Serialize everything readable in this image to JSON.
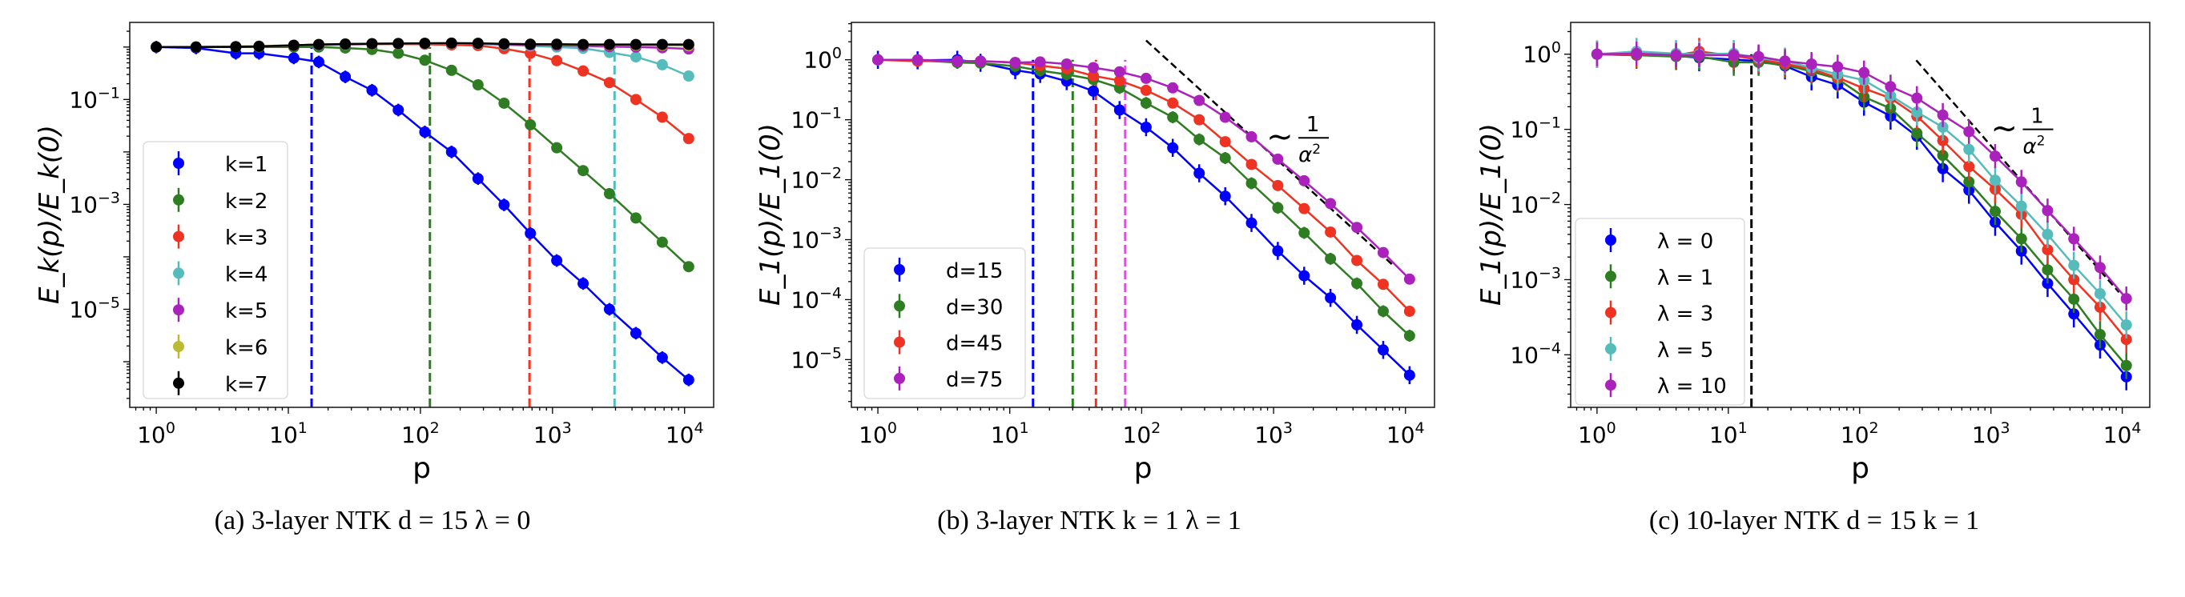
{
  "chart_data": [
    {
      "type": "line",
      "caption": "(a) 3-layer NTK d = 15 λ = 0",
      "xlabel": "p",
      "ylabel": "E_k(p)/E_k(0)",
      "xscale": "log",
      "yscale": "log",
      "xlim": [
        0.63,
        16600
      ],
      "ylim": [
        1.35e-07,
        2.95
      ],
      "xticks": [
        {
          "v": 1,
          "label": "10",
          "exp": "0"
        },
        {
          "v": 10,
          "label": "10",
          "exp": "1"
        },
        {
          "v": 100,
          "label": "10",
          "exp": "2"
        },
        {
          "v": 1000,
          "label": "10",
          "exp": "3"
        },
        {
          "v": 10000,
          "label": "10",
          "exp": "4"
        }
      ],
      "yticks": [
        {
          "v": 0.1,
          "label": "10",
          "exp": "−1"
        },
        {
          "v": 0.001,
          "label": "10",
          "exp": "−3"
        },
        {
          "v": 1e-05,
          "label": "10",
          "exp": "−5"
        }
      ],
      "grid": false,
      "legend": "center-left",
      "x": [
        1,
        2,
        4,
        6,
        11,
        17,
        27,
        43,
        68,
        108,
        172,
        273,
        430,
        680,
        1077,
        1706,
        2700,
        4280,
        6780,
        10740
      ],
      "series": [
        {
          "name": "k=1",
          "color": "#0000ff",
          "yerr_decades": 0.12,
          "values": [
            1.0,
            0.96,
            0.76,
            0.76,
            0.62,
            0.52,
            0.27,
            0.15,
            0.063,
            0.024,
            0.01,
            0.0031,
            0.00098,
            0.00028,
            8.5e-05,
            3.1e-05,
            1e-05,
            3.5e-06,
            1.2e-06,
            4.5e-07
          ]
        },
        {
          "name": "k=2",
          "color": "#2f7d22",
          "yerr_decades": 0.05,
          "values": [
            1.0,
            1.0,
            1.0,
            1.0,
            1.0,
            1.0,
            0.96,
            0.9,
            0.76,
            0.56,
            0.36,
            0.19,
            0.085,
            0.033,
            0.012,
            0.0044,
            0.0016,
            0.00055,
            0.00019,
            6.5e-05
          ]
        },
        {
          "name": "k=3",
          "color": "#ee3322",
          "yerr_decades": 0.04,
          "values": [
            1.0,
            1.0,
            1.02,
            1.03,
            1.07,
            1.1,
            1.12,
            1.13,
            1.14,
            1.13,
            1.1,
            1.07,
            0.93,
            0.76,
            0.55,
            0.35,
            0.21,
            0.1,
            0.046,
            0.018
          ]
        },
        {
          "name": "k=4",
          "color": "#55bbbb",
          "yerr_decades": 0.04,
          "values": [
            1.0,
            1.0,
            1.02,
            1.03,
            1.08,
            1.1,
            1.12,
            1.14,
            1.15,
            1.16,
            1.16,
            1.15,
            1.1,
            1.05,
            1.0,
            0.95,
            0.79,
            0.65,
            0.46,
            0.28
          ]
        },
        {
          "name": "k=5",
          "color": "#aa22bb",
          "yerr_decades": 0.04,
          "values": [
            1,
            1,
            1.02,
            1.04,
            1.08,
            1.11,
            1.13,
            1.15,
            1.16,
            1.17,
            1.17,
            1.16,
            1.13,
            1.1,
            1.08,
            1.05,
            1.02,
            1.0,
            0.97,
            0.92
          ]
        },
        {
          "name": "k=6",
          "color": "#bbbb33",
          "yerr_decades": 0.04,
          "values": [
            1,
            1,
            1.02,
            1.04,
            1.08,
            1.12,
            1.14,
            1.16,
            1.17,
            1.18,
            1.18,
            1.17,
            1.15,
            1.13,
            1.12,
            1.11,
            1.1,
            1.09,
            1.08,
            1.06
          ]
        },
        {
          "name": "k=7",
          "color": "#000000",
          "yerr_decades": 0.04,
          "values": [
            1.0,
            1.0,
            1.01,
            1.03,
            1.08,
            1.12,
            1.14,
            1.16,
            1.17,
            1.18,
            1.19,
            1.18,
            1.15,
            1.13,
            1.13,
            1.12,
            1.12,
            1.12,
            1.12,
            1.12
          ]
        }
      ],
      "vlines": [
        {
          "x": 15,
          "color": "#0000ff"
        },
        {
          "x": 118,
          "color": "#2f7d22"
        },
        {
          "x": 670,
          "color": "#ee3322"
        },
        {
          "x": 2950,
          "color": "#55bbbb"
        }
      ],
      "guide": null,
      "annotation": null
    },
    {
      "type": "line",
      "caption": "(b) 3-layer NTK k = 1 λ = 1",
      "xlabel": "p",
      "ylabel": "E_1(p)/E_1(0)",
      "xscale": "log",
      "yscale": "log",
      "xlim": [
        0.63,
        16600
      ],
      "ylim": [
        1.6e-06,
        4.2
      ],
      "xticks": [
        {
          "v": 1,
          "label": "10",
          "exp": "0"
        },
        {
          "v": 10,
          "label": "10",
          "exp": "1"
        },
        {
          "v": 100,
          "label": "10",
          "exp": "2"
        },
        {
          "v": 1000,
          "label": "10",
          "exp": "3"
        },
        {
          "v": 10000,
          "label": "10",
          "exp": "4"
        }
      ],
      "yticks": [
        {
          "v": 1,
          "label": "10",
          "exp": "0"
        },
        {
          "v": 0.1,
          "label": "10",
          "exp": "−1"
        },
        {
          "v": 0.01,
          "label": "10",
          "exp": "−2"
        },
        {
          "v": 0.001,
          "label": "10",
          "exp": "−3"
        },
        {
          "v": 0.0001,
          "label": "10",
          "exp": "−4"
        },
        {
          "v": 1e-05,
          "label": "10",
          "exp": "−5"
        }
      ],
      "grid": false,
      "legend": "lower-left",
      "x": [
        1,
        2,
        4,
        6,
        11,
        17,
        27,
        43,
        68,
        108,
        172,
        273,
        430,
        680,
        1077,
        1706,
        2700,
        4280,
        6780,
        10740
      ],
      "series": [
        {
          "name": "d=15",
          "color": "#0000ff",
          "yerr_decades": 0.15,
          "values": [
            1.0,
            0.98,
            1.0,
            0.89,
            0.67,
            0.58,
            0.44,
            0.3,
            0.145,
            0.075,
            0.034,
            0.0128,
            0.0053,
            0.0019,
            0.00065,
            0.00025,
            0.000107,
            3.8e-05,
            1.45e-05,
            5.5e-06
          ]
        },
        {
          "name": "d=30",
          "color": "#2f7d22",
          "yerr_decades": 0.1,
          "values": [
            1.0,
            0.98,
            0.9,
            0.88,
            0.78,
            0.66,
            0.57,
            0.47,
            0.34,
            0.19,
            0.11,
            0.047,
            0.023,
            0.0087,
            0.0034,
            0.0013,
            0.00048,
            0.000186,
            6.4e-05,
            2.5e-05
          ]
        },
        {
          "name": "d=45",
          "color": "#ee3322",
          "yerr_decades": 0.08,
          "values": [
            1.0,
            0.95,
            0.95,
            0.95,
            0.9,
            0.8,
            0.71,
            0.54,
            0.45,
            0.31,
            0.19,
            0.1,
            0.043,
            0.018,
            0.008,
            0.0033,
            0.00134,
            0.00045,
            0.00018,
            6.4e-05
          ]
        },
        {
          "name": "d=75",
          "color": "#aa22bb",
          "yerr_decades": 0.06,
          "values": [
            1.0,
            1.0,
            0.95,
            0.95,
            0.9,
            0.92,
            0.85,
            0.74,
            0.63,
            0.49,
            0.34,
            0.21,
            0.11,
            0.052,
            0.022,
            0.0096,
            0.004,
            0.0016,
            0.00061,
            0.00022
          ]
        }
      ],
      "vlines": [
        {
          "x": 15,
          "color": "#0000ff"
        },
        {
          "x": 30,
          "color": "#2f7d22"
        },
        {
          "x": 45,
          "color": "#ee3322"
        },
        {
          "x": 75,
          "color": "#ee44ee"
        }
      ],
      "guide": {
        "x": [
          108,
          8100
        ],
        "y": [
          2.1,
          0.00037
        ],
        "color": "#000000"
      },
      "annotation": {
        "prefix": "~",
        "numerator": "1",
        "denominator": "α",
        "denominator_exp": "2",
        "x": 1500,
        "y": 0.05
      }
    },
    {
      "type": "line",
      "caption": "(c) 10-layer NTK d = 15 k = 1",
      "xlabel": "p",
      "ylabel": "E_1(p)/E_1(0)",
      "xscale": "log",
      "yscale": "log",
      "xlim": [
        0.63,
        16200
      ],
      "ylim": [
        2e-05,
        2.65
      ],
      "xticks": [
        {
          "v": 1,
          "label": "10",
          "exp": "0"
        },
        {
          "v": 10,
          "label": "10",
          "exp": "1"
        },
        {
          "v": 100,
          "label": "10",
          "exp": "2"
        },
        {
          "v": 1000,
          "label": "10",
          "exp": "3"
        },
        {
          "v": 10000,
          "label": "10",
          "exp": "4"
        }
      ],
      "yticks": [
        {
          "v": 1,
          "label": "10",
          "exp": "0"
        },
        {
          "v": 0.1,
          "label": "10",
          "exp": "−1"
        },
        {
          "v": 0.01,
          "label": "10",
          "exp": "−2"
        },
        {
          "v": 0.001,
          "label": "10",
          "exp": "−3"
        },
        {
          "v": 0.0001,
          "label": "10",
          "exp": "−4"
        }
      ],
      "grid": false,
      "legend": "lower-left",
      "x": [
        1,
        2,
        4,
        6,
        11,
        17,
        27,
        43,
        68,
        108,
        172,
        273,
        430,
        680,
        1077,
        1706,
        2700,
        4280,
        6780,
        10740
      ],
      "series": [
        {
          "name": "λ = 0",
          "color": "#0000ff",
          "yerr_decades": 0.18,
          "values": [
            1,
            0.97,
            0.95,
            0.9,
            0.85,
            0.81,
            0.7,
            0.5,
            0.39,
            0.23,
            0.15,
            0.081,
            0.03,
            0.0155,
            0.0058,
            0.0024,
            0.00089,
            0.00035,
            0.000135,
            5.1e-05
          ]
        },
        {
          "name": "λ = 1",
          "color": "#2f7d22",
          "yerr_decades": 0.18,
          "values": [
            1,
            0.97,
            0.93,
            0.93,
            0.78,
            0.78,
            0.72,
            0.59,
            0.47,
            0.27,
            0.19,
            0.089,
            0.045,
            0.02,
            0.0081,
            0.0035,
            0.00135,
            0.00055,
            0.000186,
            7.2e-05
          ]
        },
        {
          "name": "λ = 3",
          "color": "#ee3322",
          "yerr_decades": 0.18,
          "values": [
            1,
            1,
            0.97,
            1.09,
            0.95,
            0.85,
            0.75,
            0.63,
            0.49,
            0.35,
            0.26,
            0.15,
            0.071,
            0.032,
            0.016,
            0.0074,
            0.0025,
            0.001,
            0.00043,
            0.00016
          ]
        },
        {
          "name": "λ = 5",
          "color": "#55bbbb",
          "yerr_decades": 0.18,
          "values": [
            1,
            1.09,
            1.02,
            1,
            1.02,
            0.89,
            0.81,
            0.66,
            0.54,
            0.45,
            0.28,
            0.17,
            0.107,
            0.054,
            0.021,
            0.0095,
            0.004,
            0.00155,
            0.00065,
            0.00025
          ]
        },
        {
          "name": "λ = 10",
          "color": "#aa22bb",
          "yerr_decades": 0.16,
          "values": [
            1,
            1.02,
            0.97,
            0.97,
            0.97,
            0.93,
            0.81,
            0.74,
            0.68,
            0.57,
            0.37,
            0.26,
            0.155,
            0.093,
            0.044,
            0.02,
            0.0083,
            0.0035,
            0.00145,
            0.00056
          ]
        }
      ],
      "vlines": [
        {
          "x": 15,
          "color": "#000000"
        }
      ],
      "guide": {
        "x": [
          270,
          9450
        ],
        "y": [
          0.83,
          0.00068
        ],
        "color": "#000000"
      },
      "annotation": {
        "prefix": "~",
        "numerator": "1",
        "denominator": "α",
        "denominator_exp": "2",
        "x": 1700,
        "y": 0.1
      }
    }
  ]
}
